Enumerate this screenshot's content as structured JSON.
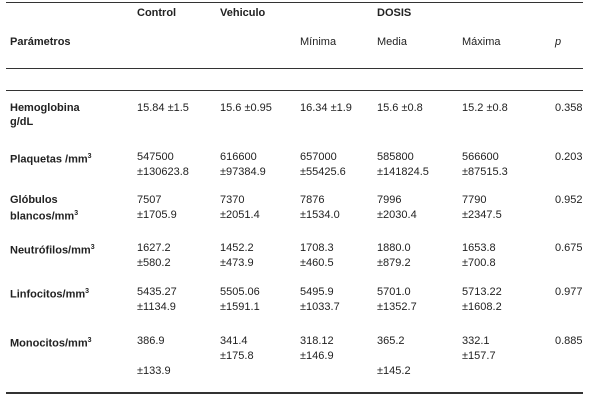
{
  "header": {
    "columns": [
      "Control",
      "Vehiculo"
    ],
    "group": "DOSIS",
    "param_label": "Parámetros",
    "subcolumns": [
      "Mínima",
      "Media",
      "Máxima"
    ],
    "p_label": "p"
  },
  "rows": [
    {
      "param": [
        "Hemoglobina",
        "g/dL"
      ],
      "cells": [
        [
          "15.84 ±1.5"
        ],
        [
          "15.6 ±0.95"
        ],
        [
          "16.34 ±1.9"
        ],
        [
          "15.6 ±0.8"
        ],
        [
          "15.2 ±0.8"
        ]
      ],
      "p": "0.358"
    },
    {
      "param": [
        "Plaquetas /mm"
      ],
      "sup": "3",
      "cells": [
        [
          "547500",
          "±130623.8"
        ],
        [
          "616600",
          "±97384.9"
        ],
        [
          "657000",
          "±55425.6"
        ],
        [
          "585800",
          "±141824.5"
        ],
        [
          "566600",
          "±87515.3"
        ]
      ],
      "p": "0.203"
    },
    {
      "param": [
        "Glóbulos",
        "blancos/mm"
      ],
      "sup": "3",
      "cells": [
        [
          "7507",
          "±1705.9"
        ],
        [
          "7370",
          "±2051.4"
        ],
        [
          "7876",
          "±1534.0"
        ],
        [
          "7996",
          "±2030.4"
        ],
        [
          "7790",
          "±2347.5"
        ]
      ],
      "p": "0.952"
    },
    {
      "param": [
        "Neutrófilos/mm"
      ],
      "sup": "3",
      "cells": [
        [
          "1627.2",
          "±580.2"
        ],
        [
          "1452.2",
          "±473.9"
        ],
        [
          "1708.3",
          "±460.5"
        ],
        [
          "1880.0",
          "±879.2"
        ],
        [
          "1653.8",
          "±700.8"
        ]
      ],
      "p": "0.675"
    },
    {
      "param": [
        "Linfocitos/mm"
      ],
      "sup": "3",
      "cells": [
        [
          "5435.27",
          "±1134.9"
        ],
        [
          "5505.06",
          "±1591.1"
        ],
        [
          "5495.9",
          "±1033.7"
        ],
        [
          "5701.0",
          "±1352.7"
        ],
        [
          "5713.22",
          "±1608.2"
        ]
      ],
      "p": "0.977"
    },
    {
      "param": [
        "Monocitos/mm"
      ],
      "sup": "3",
      "cells": [
        [
          "386.9",
          "±133.9"
        ],
        [
          "341.4",
          "±175.8"
        ],
        [
          "318.12",
          "±146.9"
        ],
        [
          "365.2",
          "±145.2"
        ],
        [
          "332.1",
          "±157.7"
        ]
      ],
      "p": "0.885"
    }
  ]
}
